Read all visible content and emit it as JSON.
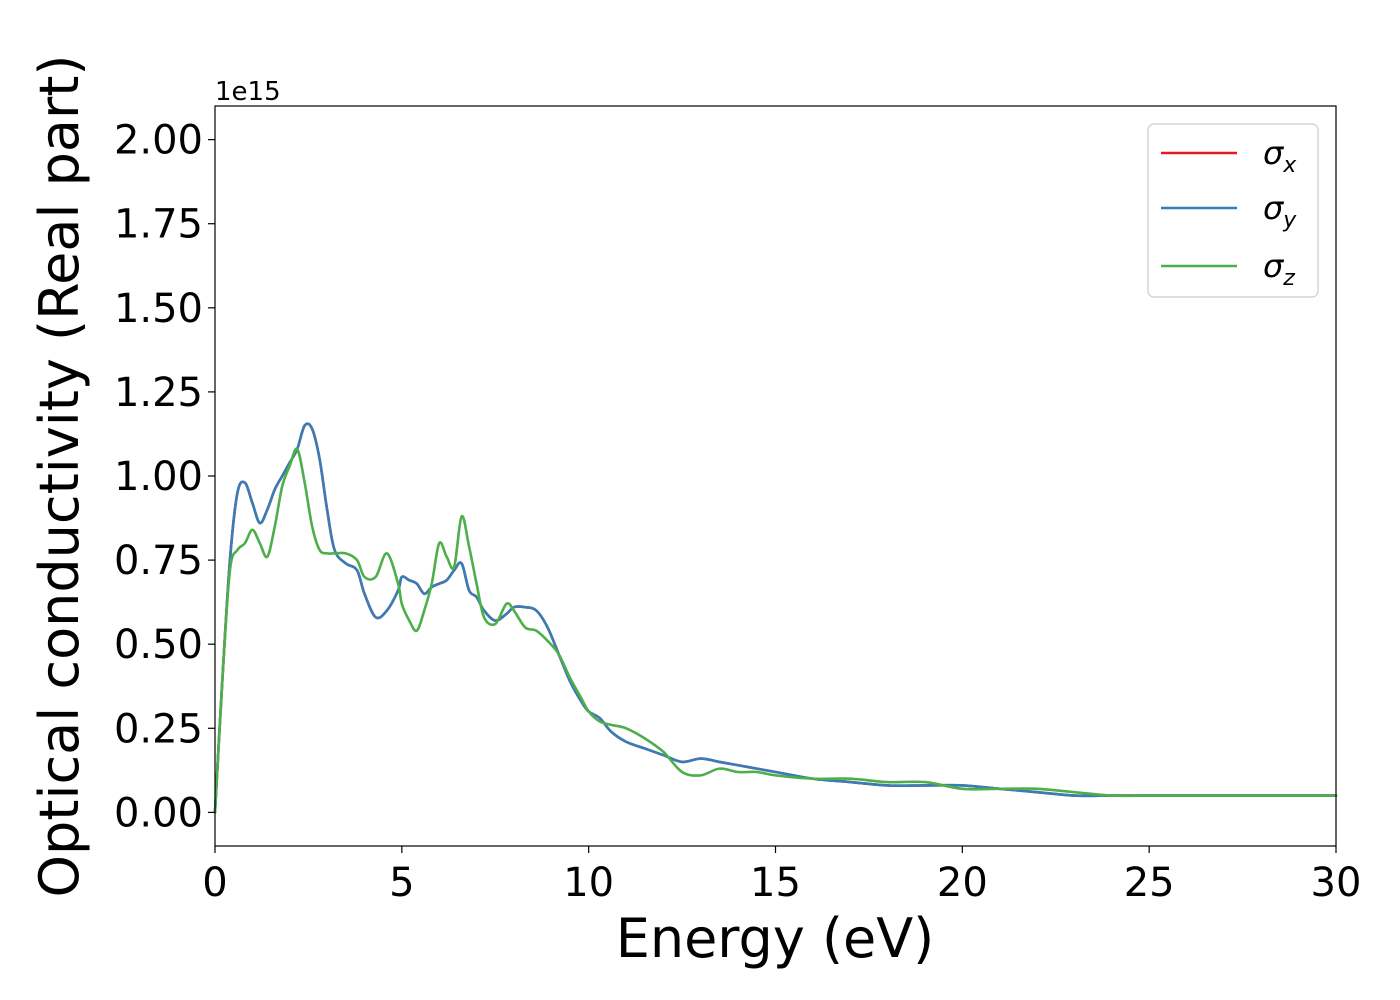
{
  "chart_data": {
    "type": "line",
    "xlabel": "Energy (eV)",
    "ylabel": "Optical conductivity (Real part)",
    "y_offset_label": "1e15",
    "xlim": [
      0,
      30
    ],
    "ylim": [
      -0.1,
      2.1
    ],
    "x_ticks": [
      0,
      5,
      10,
      15,
      20,
      25,
      30
    ],
    "x_tick_labels": [
      "0",
      "5",
      "10",
      "15",
      "20",
      "25",
      "30"
    ],
    "y_ticks": [
      0.0,
      0.25,
      0.5,
      0.75,
      1.0,
      1.25,
      1.5,
      1.75,
      2.0
    ],
    "y_tick_labels": [
      "0.00",
      "0.25",
      "0.50",
      "0.75",
      "1.00",
      "1.25",
      "1.50",
      "1.75",
      "2.00"
    ],
    "grid": false,
    "legend_position": "top-right",
    "series": [
      {
        "name": "σx",
        "symbol": "σ",
        "subscript": "x",
        "color": "#e41a1c",
        "x": [
          0,
          0.2,
          0.4,
          0.6,
          0.8,
          1.0,
          1.2,
          1.4,
          1.6,
          1.8,
          2.0,
          2.2,
          2.4,
          2.6,
          2.8,
          3.0,
          3.2,
          3.5,
          3.8,
          4.0,
          4.3,
          4.6,
          4.9,
          5.0,
          5.2,
          5.4,
          5.6,
          5.8,
          6.0,
          6.2,
          6.4,
          6.6,
          6.8,
          7.0,
          7.2,
          7.5,
          7.8,
          8.0,
          8.3,
          8.6,
          8.9,
          9.2,
          9.5,
          9.8,
          10.0,
          10.3,
          10.6,
          11.0,
          11.5,
          12.0,
          12.5,
          13.0,
          13.5,
          14.0,
          14.5,
          15.0,
          16.0,
          17.0,
          18.0,
          19.0,
          20.0,
          21.0,
          22.0,
          23.0,
          24.0,
          25.0,
          26.0,
          27.0,
          28.0,
          29.0,
          30.0
        ],
        "values": [
          0.0,
          0.4,
          0.75,
          0.95,
          0.98,
          0.92,
          0.86,
          0.9,
          0.96,
          1.0,
          1.04,
          1.08,
          1.15,
          1.14,
          1.05,
          0.9,
          0.78,
          0.74,
          0.72,
          0.65,
          0.58,
          0.6,
          0.66,
          0.7,
          0.69,
          0.68,
          0.65,
          0.67,
          0.68,
          0.69,
          0.72,
          0.74,
          0.66,
          0.64,
          0.6,
          0.57,
          0.59,
          0.61,
          0.61,
          0.6,
          0.55,
          0.47,
          0.39,
          0.33,
          0.3,
          0.28,
          0.24,
          0.21,
          0.19,
          0.17,
          0.15,
          0.16,
          0.15,
          0.14,
          0.13,
          0.12,
          0.1,
          0.09,
          0.08,
          0.08,
          0.08,
          0.07,
          0.06,
          0.05,
          0.05,
          0.05,
          0.05,
          0.05,
          0.05,
          0.05,
          0.05
        ]
      },
      {
        "name": "σy",
        "symbol": "σ",
        "subscript": "y",
        "color": "#377eb8",
        "x": [
          0,
          0.2,
          0.4,
          0.6,
          0.8,
          1.0,
          1.2,
          1.4,
          1.6,
          1.8,
          2.0,
          2.2,
          2.4,
          2.6,
          2.8,
          3.0,
          3.2,
          3.5,
          3.8,
          4.0,
          4.3,
          4.6,
          4.9,
          5.0,
          5.2,
          5.4,
          5.6,
          5.8,
          6.0,
          6.2,
          6.4,
          6.6,
          6.8,
          7.0,
          7.2,
          7.5,
          7.8,
          8.0,
          8.3,
          8.6,
          8.9,
          9.2,
          9.5,
          9.8,
          10.0,
          10.3,
          10.6,
          11.0,
          11.5,
          12.0,
          12.5,
          13.0,
          13.5,
          14.0,
          14.5,
          15.0,
          16.0,
          17.0,
          18.0,
          19.0,
          20.0,
          21.0,
          22.0,
          23.0,
          24.0,
          25.0,
          26.0,
          27.0,
          28.0,
          29.0,
          30.0
        ],
        "values": [
          0.0,
          0.4,
          0.75,
          0.95,
          0.98,
          0.92,
          0.86,
          0.9,
          0.96,
          1.0,
          1.04,
          1.08,
          1.15,
          1.14,
          1.05,
          0.9,
          0.78,
          0.74,
          0.72,
          0.65,
          0.58,
          0.6,
          0.66,
          0.7,
          0.69,
          0.68,
          0.65,
          0.67,
          0.68,
          0.69,
          0.72,
          0.74,
          0.66,
          0.64,
          0.6,
          0.57,
          0.59,
          0.61,
          0.61,
          0.6,
          0.55,
          0.47,
          0.39,
          0.33,
          0.3,
          0.28,
          0.24,
          0.21,
          0.19,
          0.17,
          0.15,
          0.16,
          0.15,
          0.14,
          0.13,
          0.12,
          0.1,
          0.09,
          0.08,
          0.08,
          0.08,
          0.07,
          0.06,
          0.05,
          0.05,
          0.05,
          0.05,
          0.05,
          0.05,
          0.05,
          0.05
        ]
      },
      {
        "name": "σz",
        "symbol": "σ",
        "subscript": "z",
        "color": "#4daf4a",
        "x": [
          0,
          0.2,
          0.4,
          0.6,
          0.8,
          1.0,
          1.2,
          1.4,
          1.6,
          1.8,
          2.0,
          2.2,
          2.4,
          2.6,
          2.8,
          3.0,
          3.2,
          3.5,
          3.8,
          4.0,
          4.3,
          4.6,
          4.9,
          5.0,
          5.2,
          5.4,
          5.6,
          5.8,
          6.0,
          6.2,
          6.4,
          6.6,
          6.8,
          7.0,
          7.2,
          7.5,
          7.8,
          8.0,
          8.3,
          8.6,
          8.9,
          9.2,
          9.5,
          9.8,
          10.0,
          10.3,
          10.6,
          11.0,
          11.5,
          12.0,
          12.5,
          13.0,
          13.5,
          14.0,
          14.5,
          15.0,
          16.0,
          17.0,
          18.0,
          19.0,
          20.0,
          21.0,
          22.0,
          23.0,
          24.0,
          25.0,
          26.0,
          27.0,
          28.0,
          29.0,
          30.0
        ],
        "values": [
          0.0,
          0.4,
          0.72,
          0.78,
          0.8,
          0.84,
          0.8,
          0.76,
          0.85,
          0.97,
          1.03,
          1.08,
          0.98,
          0.85,
          0.78,
          0.77,
          0.77,
          0.77,
          0.75,
          0.7,
          0.7,
          0.77,
          0.68,
          0.62,
          0.57,
          0.54,
          0.6,
          0.68,
          0.8,
          0.76,
          0.73,
          0.88,
          0.79,
          0.68,
          0.58,
          0.56,
          0.62,
          0.6,
          0.55,
          0.54,
          0.51,
          0.47,
          0.4,
          0.34,
          0.3,
          0.27,
          0.26,
          0.25,
          0.22,
          0.18,
          0.12,
          0.11,
          0.13,
          0.12,
          0.12,
          0.11,
          0.1,
          0.1,
          0.09,
          0.09,
          0.07,
          0.07,
          0.07,
          0.06,
          0.05,
          0.05,
          0.05,
          0.05,
          0.05,
          0.05,
          0.05
        ]
      }
    ]
  }
}
